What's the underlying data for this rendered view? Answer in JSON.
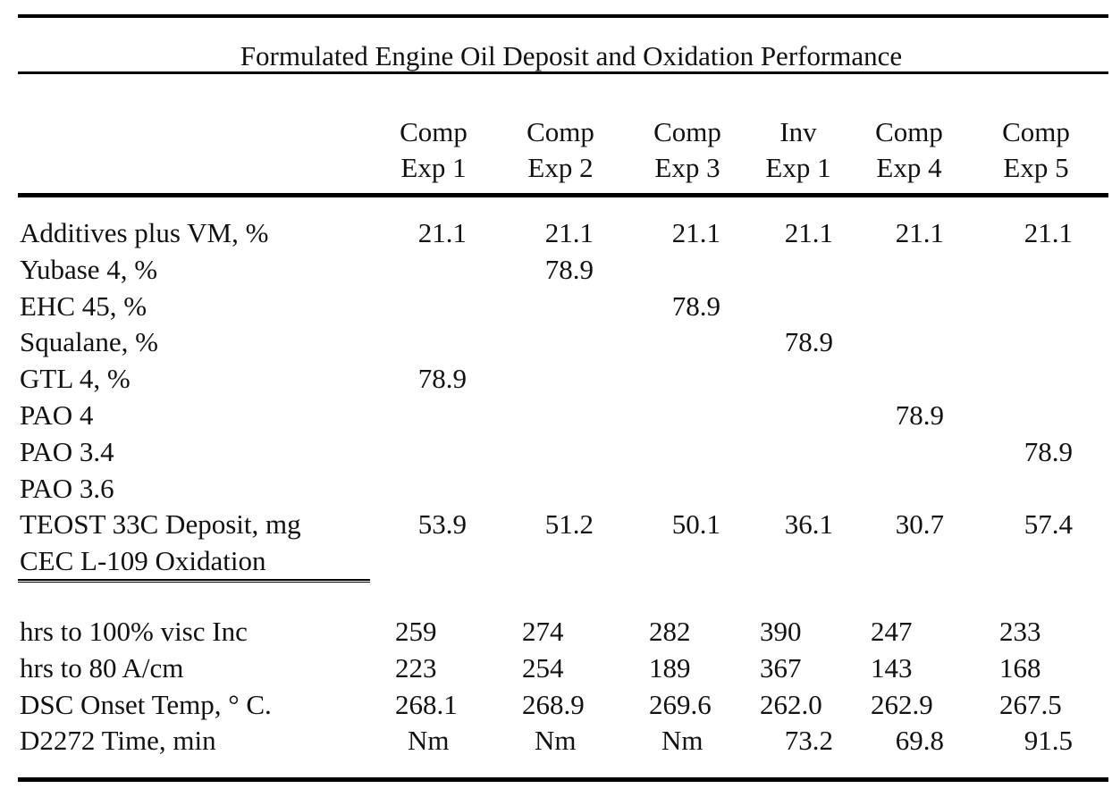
{
  "caption": "Formulated Engine Oil Deposit and Oxidation Performance",
  "columns": [
    {
      "line1": "Comp",
      "line2": "Exp 1"
    },
    {
      "line1": "Comp",
      "line2": "Exp 2"
    },
    {
      "line1": "Comp",
      "line2": "Exp 3"
    },
    {
      "line1": "Inv",
      "line2": "Exp 1"
    },
    {
      "line1": "Comp",
      "line2": "Exp 4"
    },
    {
      "line1": "Comp",
      "line2": "Exp 5"
    }
  ],
  "rows_top": [
    {
      "label": "Additives plus VM, %",
      "values": [
        "21.1",
        "21.1",
        "21.1",
        "21.1",
        "21.1",
        "21.1"
      ]
    },
    {
      "label": "Yubase 4, %",
      "values": [
        "",
        "78.9",
        "",
        "",
        "",
        ""
      ]
    },
    {
      "label": "EHC 45, %",
      "values": [
        "",
        "",
        "78.9",
        "",
        "",
        ""
      ]
    },
    {
      "label": "Squalane, %",
      "values": [
        "",
        "",
        "",
        "78.9",
        "",
        ""
      ]
    },
    {
      "label": "GTL 4, %",
      "values": [
        "78.9",
        "",
        "",
        "",
        "",
        ""
      ]
    },
    {
      "label": "PAO 4",
      "values": [
        "",
        "",
        "",
        "",
        "78.9",
        ""
      ]
    },
    {
      "label": "PAO 3.4",
      "values": [
        "",
        "",
        "",
        "",
        "",
        "78.9"
      ]
    },
    {
      "label": "PAO 3.6",
      "values": [
        "",
        "",
        "",
        "",
        "",
        ""
      ]
    },
    {
      "label": "TEOST 33C Deposit, mg",
      "values": [
        "53.9",
        "51.2",
        "50.1",
        "36.1",
        "30.7",
        "57.4"
      ]
    },
    {
      "label": "CEC L-109 Oxidation",
      "values": [
        "",
        "",
        "",
        "",
        "",
        ""
      ]
    }
  ],
  "rows_bottom": [
    {
      "label": "hrs to 100% visc Inc",
      "values": [
        "259",
        "274",
        "282",
        "390",
        "247",
        "233"
      ]
    },
    {
      "label": "hrs to 80 A/cm",
      "values": [
        "223",
        "254",
        "189",
        "367",
        "143",
        "168"
      ]
    },
    {
      "label": "DSC Onset Temp, ° C.",
      "values": [
        "268.1",
        "268.9",
        "269.6",
        "262.0",
        "262.9",
        "267.5"
      ]
    },
    {
      "label": "D2272 Time, min",
      "values": [
        "Nm",
        "Nm",
        "Nm",
        "73.2",
        "69.8",
        "91.5"
      ]
    }
  ]
}
